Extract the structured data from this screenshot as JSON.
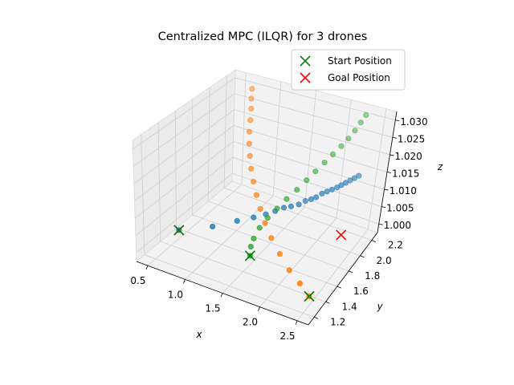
{
  "chart_data": {
    "type": "scatter",
    "projection": "3d",
    "title": "Centralized MPC (ILQR) for 3 drones",
    "xlabel": "x",
    "ylabel": "y",
    "zlabel": "z",
    "xlim": [
      0.35,
      2.65
    ],
    "ylim": [
      1.1,
      2.3
    ],
    "zlim": [
      0.9975,
      1.0325
    ],
    "xticks": [
      "0.5",
      "1.0",
      "1.5",
      "2.0",
      "2.5"
    ],
    "yticks": [
      "1.2",
      "1.4",
      "1.6",
      "1.8",
      "2.0",
      "2.2"
    ],
    "zticks": [
      "1.000",
      "1.005",
      "1.010",
      "1.015",
      "1.020",
      "1.025",
      "1.030"
    ],
    "grid": true,
    "legend_position": "top-right",
    "legend": [
      {
        "label": "Start Position",
        "marker": "x",
        "color": "#008000"
      },
      {
        "label": "Goal Position",
        "marker": "x",
        "color": "#ff0000"
      }
    ],
    "colors": {
      "drone_1": "#1f77b4",
      "drone_2": "#ff7f0e",
      "drone_3": "#2ca02c",
      "start": "#008000",
      "goal": "#ff0000"
    },
    "series": [
      {
        "points": [
          {
            "x": 0.5,
            "y": 1.5,
            "z": 1.0
          },
          {
            "x": 0.95,
            "y": 1.52,
            "z": 1.004
          },
          {
            "x": 1.25,
            "y": 1.56,
            "z": 1.007
          },
          {
            "x": 1.42,
            "y": 1.62,
            "z": 1.008
          },
          {
            "x": 1.55,
            "y": 1.66,
            "z": 1.009
          },
          {
            "x": 1.65,
            "y": 1.69,
            "z": 1.01
          },
          {
            "x": 1.74,
            "y": 1.72,
            "z": 1.011
          },
          {
            "x": 1.82,
            "y": 1.74,
            "z": 1.0115
          },
          {
            "x": 1.9,
            "y": 1.77,
            "z": 1.012
          },
          {
            "x": 1.97,
            "y": 1.79,
            "z": 1.013
          },
          {
            "x": 2.03,
            "y": 1.81,
            "z": 1.0135
          },
          {
            "x": 2.08,
            "y": 1.83,
            "z": 1.014
          },
          {
            "x": 2.14,
            "y": 1.85,
            "z": 1.015
          },
          {
            "x": 2.19,
            "y": 1.87,
            "z": 1.0155
          },
          {
            "x": 2.24,
            "y": 1.89,
            "z": 1.016
          },
          {
            "x": 2.29,
            "y": 1.91,
            "z": 1.0165
          },
          {
            "x": 2.33,
            "y": 1.93,
            "z": 1.017
          },
          {
            "x": 2.37,
            "y": 1.95,
            "z": 1.0175
          },
          {
            "x": 2.41,
            "y": 1.97,
            "z": 1.018
          },
          {
            "x": 2.45,
            "y": 1.99,
            "z": 1.0185
          },
          {
            "x": 2.49,
            "y": 2.01,
            "z": 1.019
          }
        ]
      },
      {
        "points": [
          {
            "x": 2.5,
            "y": 1.3,
            "z": 1.0
          },
          {
            "x": 2.32,
            "y": 1.36,
            "z": 1.001
          },
          {
            "x": 2.12,
            "y": 1.42,
            "z": 1.002
          },
          {
            "x": 1.93,
            "y": 1.48,
            "z": 1.004
          },
          {
            "x": 1.75,
            "y": 1.54,
            "z": 1.006
          },
          {
            "x": 1.6,
            "y": 1.6,
            "z": 1.008
          },
          {
            "x": 1.47,
            "y": 1.66,
            "z": 1.01
          },
          {
            "x": 1.35,
            "y": 1.72,
            "z": 1.012
          },
          {
            "x": 1.24,
            "y": 1.78,
            "z": 1.014
          },
          {
            "x": 1.14,
            "y": 1.84,
            "z": 1.016
          },
          {
            "x": 1.05,
            "y": 1.9,
            "z": 1.018
          },
          {
            "x": 0.97,
            "y": 1.96,
            "z": 1.02
          },
          {
            "x": 0.9,
            "y": 2.02,
            "z": 1.022
          },
          {
            "x": 0.84,
            "y": 2.08,
            "z": 1.024
          },
          {
            "x": 0.78,
            "y": 2.14,
            "z": 1.026
          },
          {
            "x": 0.73,
            "y": 2.18,
            "z": 1.028
          },
          {
            "x": 0.69,
            "y": 2.22,
            "z": 1.03
          }
        ]
      },
      {
        "points": [
          {
            "x": 1.5,
            "y": 1.5,
            "z": 1.0
          },
          {
            "x": 1.45,
            "y": 1.56,
            "z": 1.001
          },
          {
            "x": 1.43,
            "y": 1.62,
            "z": 1.002
          },
          {
            "x": 1.45,
            "y": 1.68,
            "z": 1.004
          },
          {
            "x": 1.5,
            "y": 1.74,
            "z": 1.006
          },
          {
            "x": 1.57,
            "y": 1.8,
            "z": 1.008
          },
          {
            "x": 1.64,
            "y": 1.86,
            "z": 1.01
          },
          {
            "x": 1.72,
            "y": 1.92,
            "z": 1.012
          },
          {
            "x": 1.79,
            "y": 1.98,
            "z": 1.014
          },
          {
            "x": 1.86,
            "y": 2.03,
            "z": 1.016
          },
          {
            "x": 1.93,
            "y": 2.08,
            "z": 1.018
          },
          {
            "x": 2.0,
            "y": 2.12,
            "z": 1.02
          },
          {
            "x": 2.07,
            "y": 2.16,
            "z": 1.022
          },
          {
            "x": 2.13,
            "y": 2.19,
            "z": 1.024
          },
          {
            "x": 2.18,
            "y": 2.22,
            "z": 1.026
          },
          {
            "x": 2.22,
            "y": 2.25,
            "z": 1.028
          },
          {
            "x": 2.26,
            "y": 2.27,
            "z": 1.03
          }
        ]
      }
    ],
    "start_positions": [
      {
        "x": 0.5,
        "y": 1.5,
        "z": 1.0
      },
      {
        "x": 2.5,
        "y": 1.3,
        "z": 1.0
      },
      {
        "x": 1.5,
        "y": 1.5,
        "z": 1.0
      }
    ],
    "goal_positions": [
      {
        "x": 0.5,
        "y": 1.5,
        "z": 1.0
      },
      {
        "x": 2.5,
        "y": 1.3,
        "z": 1.0
      },
      {
        "x": 2.3,
        "y": 2.05,
        "z": 1.0
      }
    ]
  }
}
